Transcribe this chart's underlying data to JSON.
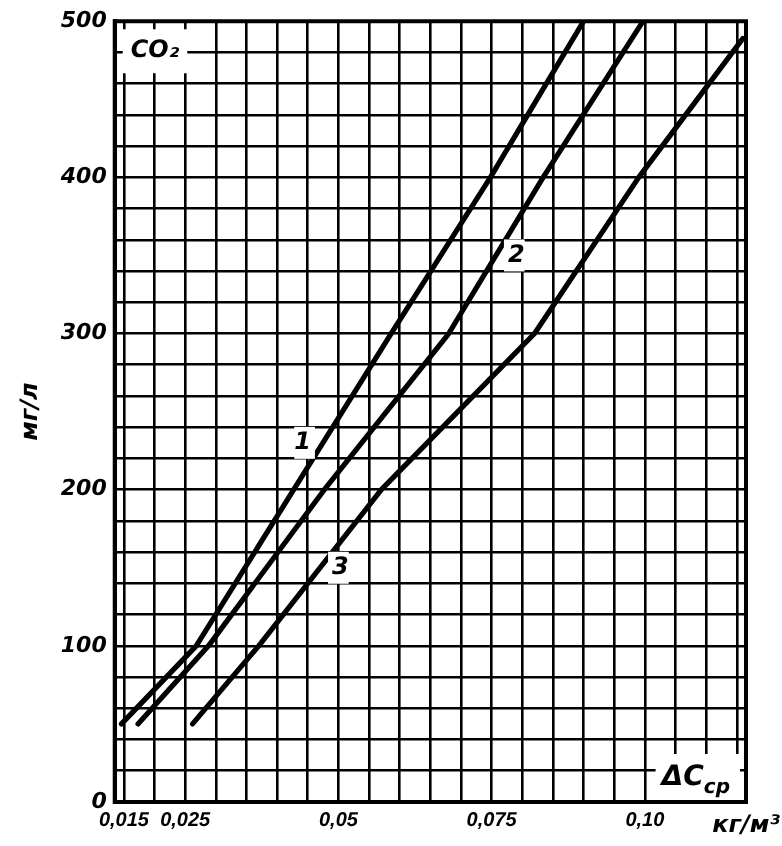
{
  "chart_data": {
    "type": "line",
    "ylabel": "мг/л",
    "xlabel": "ΔC$_{ср}$",
    "annotations": [
      "CO₂",
      "кг/м³"
    ],
    "xlim": [
      0.0135,
      0.1165
    ],
    "ylim": [
      0,
      500
    ],
    "xticks": [
      {
        "value": 0.015,
        "label": "0,015"
      },
      {
        "value": 0.02,
        "label": null
      },
      {
        "value": 0.025,
        "label": "0,025"
      },
      {
        "value": 0.03,
        "label": null
      },
      {
        "value": 0.035,
        "label": null
      },
      {
        "value": 0.04,
        "label": null
      },
      {
        "value": 0.045,
        "label": null
      },
      {
        "value": 0.05,
        "label": "0,05"
      },
      {
        "value": 0.055,
        "label": null
      },
      {
        "value": 0.06,
        "label": null
      },
      {
        "value": 0.065,
        "label": null
      },
      {
        "value": 0.07,
        "label": null
      },
      {
        "value": 0.075,
        "label": "0,075"
      },
      {
        "value": 0.08,
        "label": null
      },
      {
        "value": 0.085,
        "label": null
      },
      {
        "value": 0.09,
        "label": null
      },
      {
        "value": 0.095,
        "label": null
      },
      {
        "value": 0.1,
        "label": "0,10"
      },
      {
        "value": 0.105,
        "label": null
      },
      {
        "value": 0.11,
        "label": null
      },
      {
        "value": 0.115,
        "label": null
      }
    ],
    "yticks": [
      0,
      {
        "value": 20,
        "label": null
      },
      {
        "value": 40,
        "label": null
      },
      {
        "value": 60,
        "label": null
      },
      {
        "value": 80,
        "label": null
      },
      100,
      {
        "value": 120,
        "label": null
      },
      {
        "value": 140,
        "label": null
      },
      {
        "value": 160,
        "label": null
      },
      {
        "value": 180,
        "label": null
      },
      200,
      {
        "value": 220,
        "label": null
      },
      {
        "value": 240,
        "label": null
      },
      {
        "value": 260,
        "label": null
      },
      {
        "value": 280,
        "label": null
      },
      300,
      {
        "value": 320,
        "label": null
      },
      {
        "value": 340,
        "label": null
      },
      {
        "value": 360,
        "label": null
      },
      {
        "value": 380,
        "label": null
      },
      400,
      {
        "value": 420,
        "label": null
      },
      {
        "value": 440,
        "label": null
      },
      {
        "value": 460,
        "label": null
      },
      {
        "value": 480,
        "label": null
      },
      500
    ],
    "grid": true,
    "legend": false,
    "marker": "none",
    "line_style": "solid",
    "series": [
      {
        "name": "1",
        "color": "#000000",
        "x": [
          0.0146,
          0.0268,
          0.0427,
          0.0586,
          0.0748,
          0.09
        ],
        "values": [
          50,
          100,
          200,
          300,
          400,
          500
        ]
      },
      {
        "name": "2",
        "color": "#000000",
        "x": [
          0.0173,
          0.0288,
          0.0477,
          0.068,
          0.0834,
          0.0997
        ],
        "values": [
          50,
          100,
          200,
          300,
          400,
          500
        ]
      },
      {
        "name": "3",
        "color": "#000000",
        "x": [
          0.0262,
          0.037,
          0.057,
          0.082,
          0.099,
          0.116
        ],
        "values": [
          50,
          100,
          200,
          300,
          400,
          489
        ]
      }
    ]
  }
}
